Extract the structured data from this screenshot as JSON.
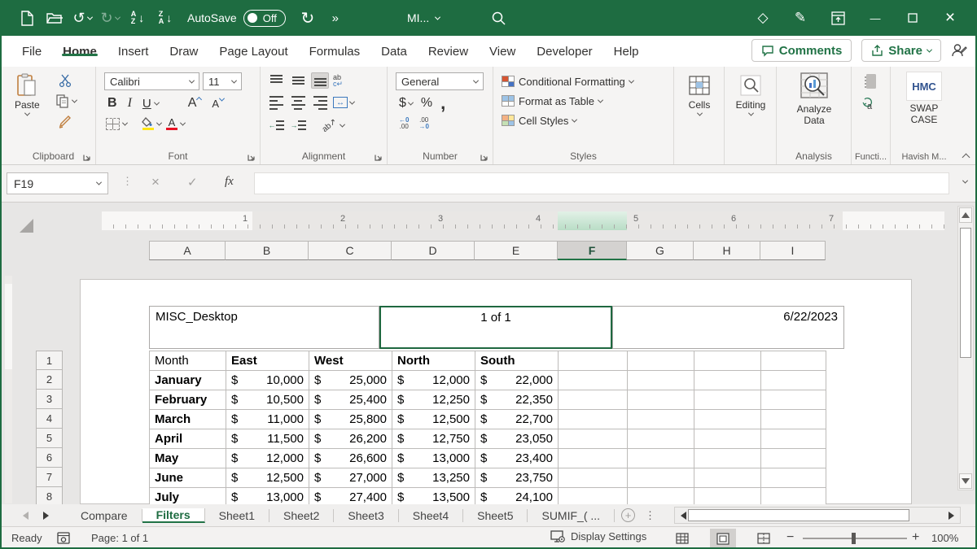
{
  "title_bar": {
    "autosave_label": "AutoSave",
    "autosave_state": "Off",
    "doc_title": "MI...",
    "more_commands": "»"
  },
  "icons": {
    "undo": "↺",
    "redo": "↻",
    "refresh": "↻",
    "diamond": "◇",
    "pen": "✎",
    "minimize": "—",
    "close": "×",
    "cancel": "×",
    "check": "✓"
  },
  "menu_bar": {
    "tabs": [
      "File",
      "Home",
      "Insert",
      "Draw",
      "Page Layout",
      "Formulas",
      "Data",
      "Review",
      "View",
      "Developer",
      "Help"
    ],
    "active_tab": "Home",
    "comments_label": "Comments",
    "share_label": "Share"
  },
  "ribbon": {
    "paste_label": "Paste",
    "font_name": "Calibri",
    "font_size": "11",
    "bold_label": "B",
    "italic_label": "I",
    "underline_label": "U",
    "grow_font_label": "A",
    "shrink_font_label": "A",
    "font_color_label": "A",
    "wrap_text_label": "ab",
    "number_format": "General",
    "currency_label": "$",
    "percent_label": "%",
    "comma_label": ",",
    "increase_decimal_top": "←0",
    "increase_decimal_bottom": ".00",
    "decrease_decimal_top": ".00",
    "decrease_decimal_bottom": "→0",
    "styles_items": [
      "Conditional Formatting",
      "Format as Table",
      "Cell Styles"
    ],
    "cells_label": "Cells",
    "editing_label": "Editing",
    "analyze_label_1": "Analyze",
    "analyze_label_2": "Data",
    "hmc_badge": "HMC",
    "swap_case_label_1": "SWAP",
    "swap_case_label_2": "CASE",
    "group_labels": {
      "clipboard": "Clipboard",
      "font": "Font",
      "alignment": "Alignment",
      "number": "Number",
      "styles": "Styles",
      "analysis": "Analysis",
      "functions": "Functi...",
      "havish": "Havish M..."
    }
  },
  "formula_bar": {
    "cell_reference": "F19",
    "fx_label": "fx",
    "formula_value": ""
  },
  "worksheet": {
    "ruler_marks": [
      "1",
      "2",
      "3",
      "4",
      "5",
      "6",
      "7"
    ],
    "column_headers": [
      "A",
      "B",
      "C",
      "D",
      "E",
      "F",
      "G",
      "H",
      "I"
    ],
    "selected_column": "F",
    "row_headers": [
      "1",
      "2",
      "3",
      "4",
      "5",
      "6",
      "7",
      "8"
    ],
    "page_header": {
      "left": "MISC_Desktop",
      "center": "1 of 1",
      "right": "6/22/2023"
    },
    "table": {
      "columns": [
        "Month",
        "East",
        "West",
        "North",
        "South"
      ],
      "currency_symbol": "$",
      "rows": [
        {
          "month": "January",
          "east": "10,000",
          "west": "25,000",
          "north": "12,000",
          "south": "22,000"
        },
        {
          "month": "February",
          "east": "10,500",
          "west": "25,400",
          "north": "12,250",
          "south": "22,350"
        },
        {
          "month": "March",
          "east": "11,000",
          "west": "25,800",
          "north": "12,500",
          "south": "22,700"
        },
        {
          "month": "April",
          "east": "11,500",
          "west": "26,200",
          "north": "12,750",
          "south": "23,050"
        },
        {
          "month": "May",
          "east": "12,000",
          "west": "26,600",
          "north": "13,000",
          "south": "23,400"
        },
        {
          "month": "June",
          "east": "12,500",
          "west": "27,000",
          "north": "13,250",
          "south": "23,750"
        },
        {
          "month": "July",
          "east": "13,000",
          "west": "27,400",
          "north": "13,500",
          "south": "24,100"
        }
      ]
    }
  },
  "sheet_tabs": {
    "tabs": [
      "Compare",
      "Filters",
      "Sheet1",
      "Sheet2",
      "Sheet3",
      "Sheet4",
      "Sheet5",
      "SUMIF_( ..."
    ],
    "active_tab": "Filters"
  },
  "status_bar": {
    "mode": "Ready",
    "page_info": "Page: 1 of 1",
    "display_settings_label": "Display Settings",
    "zoom_level": "100%"
  },
  "colors": {
    "excel_green": "#1E6C41",
    "accent_green": "#217346",
    "selection_border": "#1F6840"
  }
}
